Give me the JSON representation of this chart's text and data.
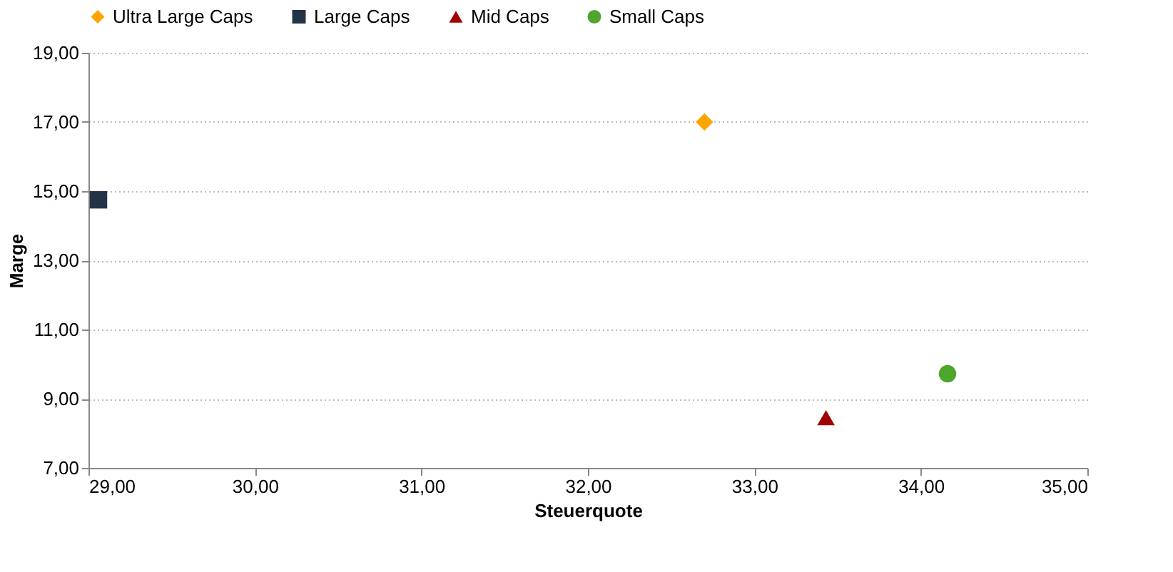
{
  "chart_data": {
    "type": "scatter",
    "xlabel": "Steuerquote",
    "ylabel": "Marge",
    "xlim": [
      29,
      35
    ],
    "ylim": [
      7,
      19
    ],
    "xticks": [
      {
        "value": 29,
        "label": "29,00"
      },
      {
        "value": 30,
        "label": "30,00"
      },
      {
        "value": 31,
        "label": "31,00"
      },
      {
        "value": 32,
        "label": "32,00"
      },
      {
        "value": 33,
        "label": "33,00"
      },
      {
        "value": 34,
        "label": "34,00"
      },
      {
        "value": 35,
        "label": "35,00"
      }
    ],
    "yticks": [
      {
        "value": 7,
        "label": "7,00"
      },
      {
        "value": 9,
        "label": "9,00"
      },
      {
        "value": 11,
        "label": "11,00"
      },
      {
        "value": 13,
        "label": "13,00"
      },
      {
        "value": 15,
        "label": "15,00"
      },
      {
        "value": 17,
        "label": "17,00"
      },
      {
        "value": 19,
        "label": "19,00"
      }
    ],
    "grid": "y",
    "legend": "top",
    "series": [
      {
        "name": "Ultra Large Caps",
        "color": "#ffa500",
        "marker": "diamond",
        "x": [
          32.7
        ],
        "values": [
          17.0
        ]
      },
      {
        "name": "Large Caps",
        "color": "#243447",
        "marker": "square",
        "x": [
          29.06
        ],
        "values": [
          14.75
        ]
      },
      {
        "name": "Mid Caps",
        "color": "#a00000",
        "marker": "triangle",
        "x": [
          33.43
        ],
        "values": [
          8.45
        ]
      },
      {
        "name": "Small Caps",
        "color": "#4ea72c",
        "marker": "circle",
        "x": [
          34.16
        ],
        "values": [
          9.72
        ]
      }
    ]
  }
}
